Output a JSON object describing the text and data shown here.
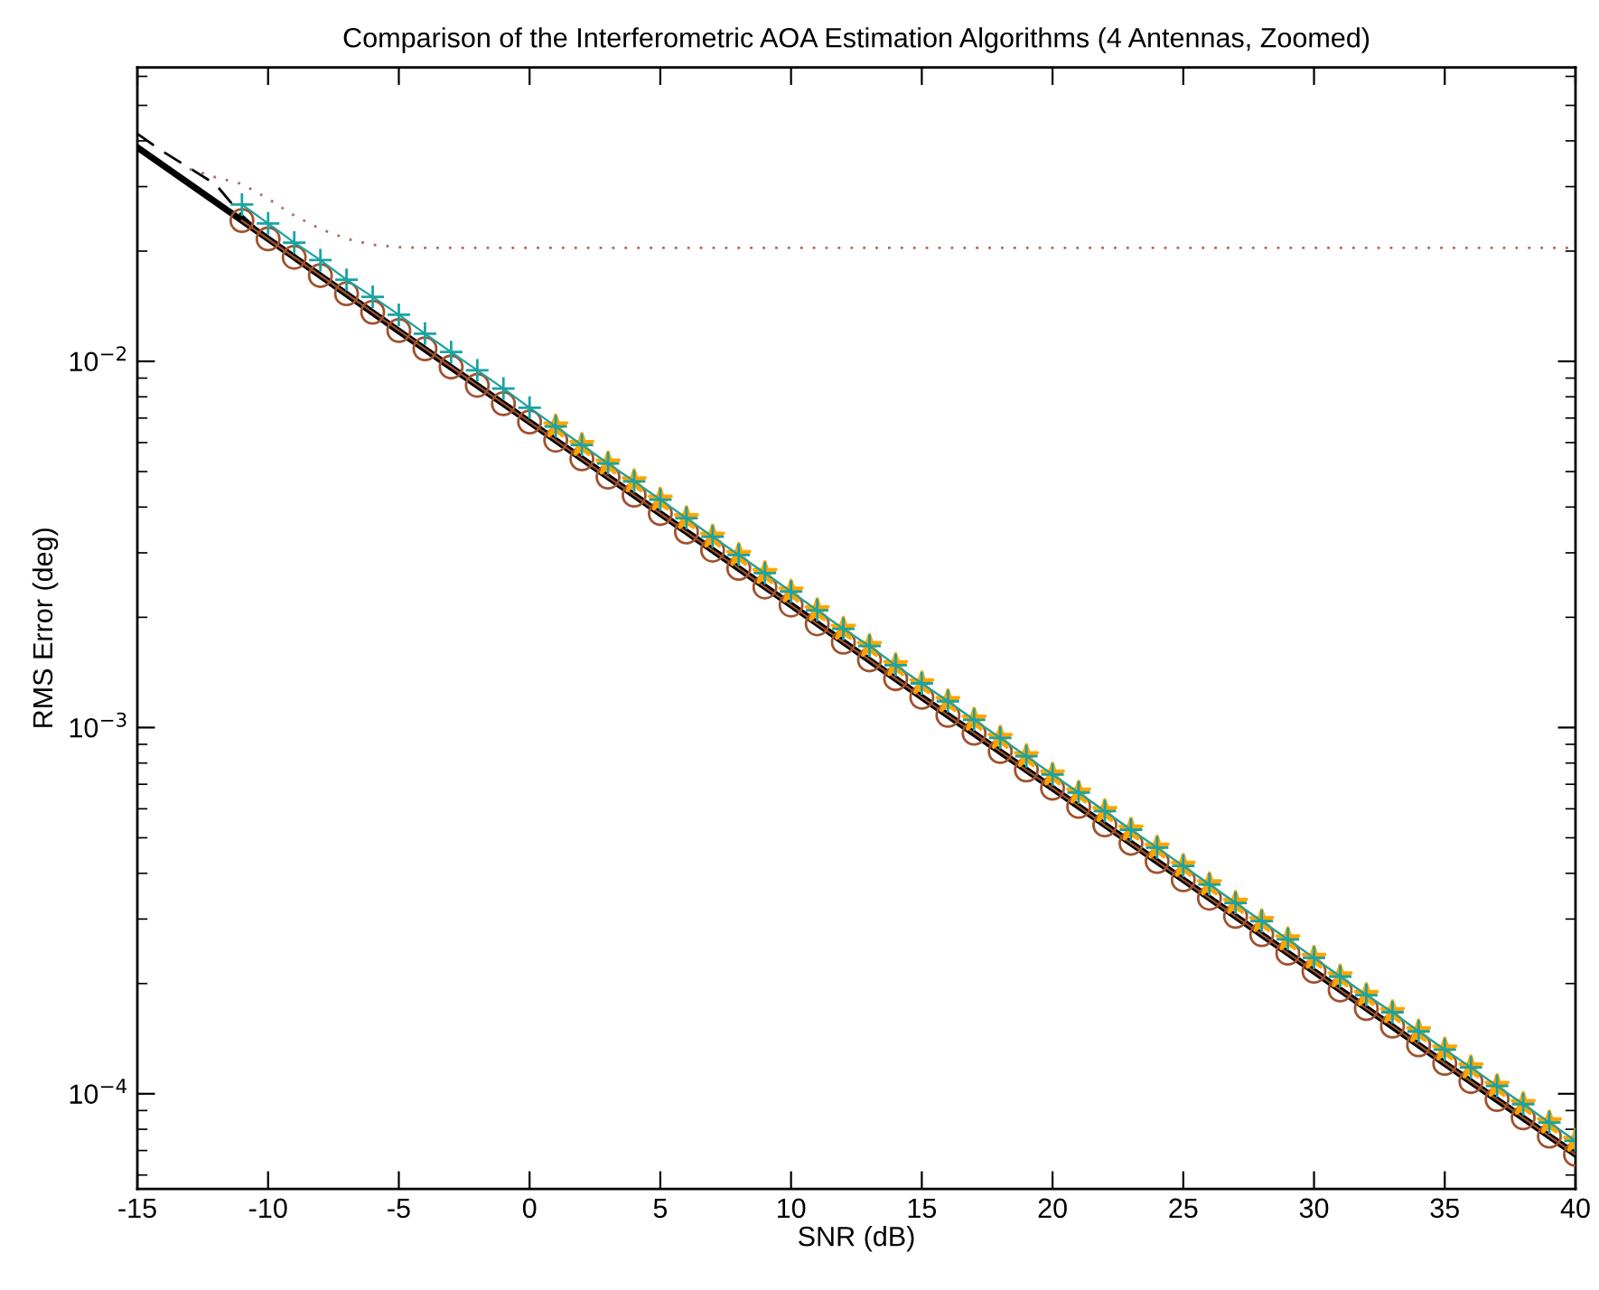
{
  "chart_data": {
    "type": "line",
    "title": "Comparison of the Interferometric AOA Estimation Algorithms (4 Antennas, Zoomed)",
    "xlabel": "SNR (dB)",
    "ylabel": "RMS Error (deg)",
    "log": "y",
    "xlim": [
      -15,
      40
    ],
    "ylim": [
      5.5e-05,
      0.0635
    ],
    "xticks": [
      -15,
      -10,
      -5,
      0,
      5,
      10,
      15,
      20,
      25,
      30,
      35,
      40
    ],
    "yticks": [
      {
        "value": 0.0001,
        "label": "10$^{−4}$"
      },
      {
        "value": 0.001,
        "label": "10$^{−3}$"
      },
      {
        "value": 0.01,
        "label": "10$^{−2}$"
      }
    ],
    "grid": false,
    "legend": false,
    "series": [
      {
        "color": "#000000",
        "line_style": "solid",
        "x": [
          -15,
          -10,
          -5,
          0,
          5,
          10,
          15,
          20,
          25,
          30,
          35,
          40
        ],
        "values": [
          0.0384,
          0.0216,
          0.0121,
          0.00683,
          0.00384,
          0.00216,
          0.00121,
          0.000683,
          0.000384,
          0.000216,
          0.000121,
          6.83e-05
        ]
      },
      {
        "color": "#000000",
        "line_style": "dashed",
        "x": [
          -15,
          -14,
          -13,
          -12,
          -11,
          -10
        ],
        "values": [
          0.0418,
          0.0373,
          0.0337,
          0.0304,
          0.025,
          0.0216
        ]
      },
      {
        "color": "#b06a60",
        "line_style": "dotted",
        "x": [
          -13,
          -12,
          -11,
          -10,
          -9,
          -8,
          -7,
          -6,
          -5,
          -4,
          40
        ],
        "values": [
          0.0335,
          0.0318,
          0.0305,
          0.0278,
          0.025,
          0.023,
          0.0216,
          0.0208,
          0.0205,
          0.0204,
          0.0204
        ]
      },
      {
        "color": "#a0522d",
        "line_style": "solid",
        "marker": "circle",
        "x": [
          -11,
          -10,
          -9,
          -8,
          -7,
          -6,
          -5,
          -4,
          -3,
          -2,
          -1,
          0,
          1,
          2,
          3,
          4,
          5,
          6,
          7,
          8,
          9,
          10,
          11,
          12,
          13,
          14,
          15,
          16,
          17,
          18,
          19,
          20,
          21,
          22,
          23,
          24,
          25,
          26,
          27,
          28,
          29,
          30,
          31,
          32,
          33,
          34,
          35,
          36,
          37,
          38,
          39,
          40
        ],
        "values": [
          0.02423,
          0.02159,
          0.01924,
          0.01715,
          0.01529,
          0.01362,
          0.01214,
          0.01082,
          0.00965,
          0.0086,
          0.00766,
          0.00683,
          0.00609,
          0.00542,
          0.00483,
          0.00431,
          0.00384,
          0.00342,
          0.00305,
          0.00272,
          0.00242,
          0.00216,
          0.00192,
          0.00171,
          0.00153,
          0.00136,
          0.00121,
          0.00108,
          0.000965,
          0.00086,
          0.000766,
          0.000683,
          0.000609,
          0.000542,
          0.000483,
          0.000431,
          0.000384,
          0.000342,
          0.000305,
          0.000272,
          0.000242,
          0.000216,
          0.000192,
          0.000171,
          0.000153,
          0.000136,
          0.000121,
          0.000108,
          9.65e-05,
          8.6e-05,
          7.66e-05,
          6.83e-05
        ]
      },
      {
        "color": "#1aa3a3",
        "line_style": "solid",
        "marker": "cross",
        "x": [
          -11,
          -10,
          -9,
          -8,
          -7,
          -6,
          -5,
          -4,
          -3,
          -2,
          -1,
          0,
          1,
          2,
          3,
          4,
          5,
          6,
          7,
          8,
          9,
          10,
          11,
          12,
          13,
          14,
          15,
          16,
          17,
          18,
          19,
          20,
          21,
          22,
          23,
          24,
          25,
          26,
          27,
          28,
          29,
          30,
          31,
          32,
          33,
          34,
          35,
          36,
          37,
          38,
          39,
          40
        ],
        "values": [
          0.0268,
          0.0238,
          0.0211,
          0.0189,
          0.0167,
          0.015,
          0.0134,
          0.0119,
          0.0106,
          0.00945,
          0.00843,
          0.00747,
          0.00664,
          0.00591,
          0.00526,
          0.0047,
          0.00419,
          0.00373,
          0.00332,
          0.00296,
          0.00264,
          0.00235,
          0.00209,
          0.00186,
          0.00167,
          0.00148,
          0.00132,
          0.00118,
          0.00105,
          0.000937,
          0.000835,
          0.000744,
          0.000664,
          0.000591,
          0.000526,
          0.00047,
          0.000419,
          0.000373,
          0.000332,
          0.000296,
          0.000264,
          0.000235,
          0.000209,
          0.000186,
          0.000167,
          0.000148,
          0.000132,
          0.000118,
          0.000105,
          9.37e-05,
          8.35e-05,
          7.44e-05
        ]
      },
      {
        "color": "#ffa500",
        "line_style": "solid",
        "marker": "star",
        "x": [
          1,
          2,
          3,
          4,
          5,
          6,
          7,
          8,
          9,
          10,
          11,
          12,
          13,
          14,
          15,
          16,
          17,
          18,
          19,
          20,
          21,
          22,
          23,
          24,
          25,
          26,
          27,
          28,
          29,
          30,
          31,
          32,
          33,
          34,
          35,
          36,
          37,
          38,
          39,
          40
        ],
        "values": [
          0.00664,
          0.00591,
          0.00526,
          0.0047,
          0.00419,
          0.00373,
          0.00332,
          0.00296,
          0.00264,
          0.00235,
          0.00209,
          0.00186,
          0.00167,
          0.00148,
          0.00132,
          0.00118,
          0.00105,
          0.000937,
          0.000835,
          0.000744,
          0.000664,
          0.000591,
          0.000526,
          0.00047,
          0.000419,
          0.000373,
          0.000332,
          0.000296,
          0.000264,
          0.000235,
          0.000209,
          0.000186,
          0.000167,
          0.000148,
          0.000132,
          0.000118,
          0.000105,
          9.37e-05,
          8.35e-05,
          7.44e-05
        ]
      }
    ]
  }
}
